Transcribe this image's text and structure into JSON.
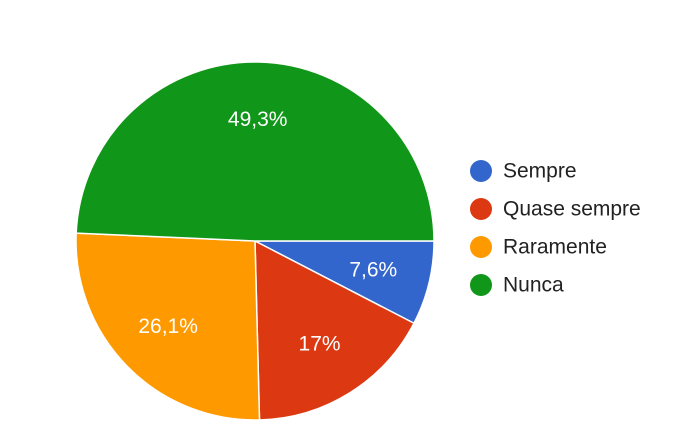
{
  "chart_data": {
    "type": "pie",
    "categories": [
      "Sempre",
      "Quase sempre",
      "Raramente",
      "Nunca"
    ],
    "values": [
      7.6,
      17,
      26.1,
      49.3
    ],
    "value_labels": [
      "7,6%",
      "17%",
      "26,1%",
      "49,3%"
    ],
    "colors": [
      "#3366cc",
      "#dc3912",
      "#ff9900",
      "#109618"
    ],
    "start_angle_deg": 90,
    "direction": "clockwise",
    "legend": "right"
  }
}
